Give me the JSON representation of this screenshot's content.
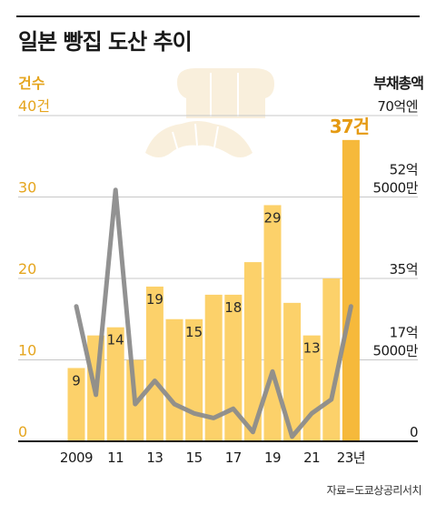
{
  "title": "일본 빵집 도산 추이",
  "source": "자료=도쿄상공리서치",
  "chart_data": {
    "type": "bar+line",
    "left_axis": {
      "label": "건수",
      "ylim": [
        0,
        40
      ],
      "ticks": [
        {
          "value": 0,
          "label": "0"
        },
        {
          "value": 10,
          "label": "10"
        },
        {
          "value": 20,
          "label": "20"
        },
        {
          "value": 30,
          "label": "30"
        },
        {
          "value": 40,
          "label": "40건"
        }
      ]
    },
    "right_axis": {
      "label": "부채총액",
      "ylim": [
        0,
        70
      ],
      "ticks": [
        {
          "value": 0,
          "lines": [
            "0"
          ]
        },
        {
          "value": 17.5,
          "lines": [
            "17억",
            "5000만"
          ]
        },
        {
          "value": 35,
          "lines": [
            "35억"
          ]
        },
        {
          "value": 52.5,
          "lines": [
            "52억",
            "5000만"
          ]
        },
        {
          "value": 70,
          "lines": [
            "70억엔"
          ]
        }
      ]
    },
    "x": [
      "2009",
      "10",
      "11",
      "12",
      "13",
      "14",
      "15",
      "16",
      "17",
      "18",
      "19",
      "20",
      "21",
      "22",
      "23"
    ],
    "x_tick_labels": [
      "2009",
      "",
      "11",
      "",
      "13",
      "",
      "15",
      "",
      "17",
      "",
      "19",
      "",
      "21",
      "",
      "23년"
    ],
    "bars": {
      "name": "건수",
      "values": [
        9,
        13,
        14,
        10,
        19,
        15,
        15,
        18,
        18,
        22,
        29,
        17,
        13,
        20,
        37
      ],
      "labels": [
        "9",
        "",
        "14",
        "",
        "19",
        "",
        "15",
        "",
        "18",
        "",
        "29",
        "",
        "13",
        "",
        "37건"
      ],
      "color": "#fcd16a",
      "highlight_color": "#f6b93b"
    },
    "line": {
      "name": "부채총액",
      "values": [
        29,
        10,
        54,
        8,
        13,
        8,
        6,
        5,
        7,
        2,
        15,
        1,
        6,
        9,
        29
      ],
      "color": "#8c8c8c"
    },
    "grid": true
  }
}
